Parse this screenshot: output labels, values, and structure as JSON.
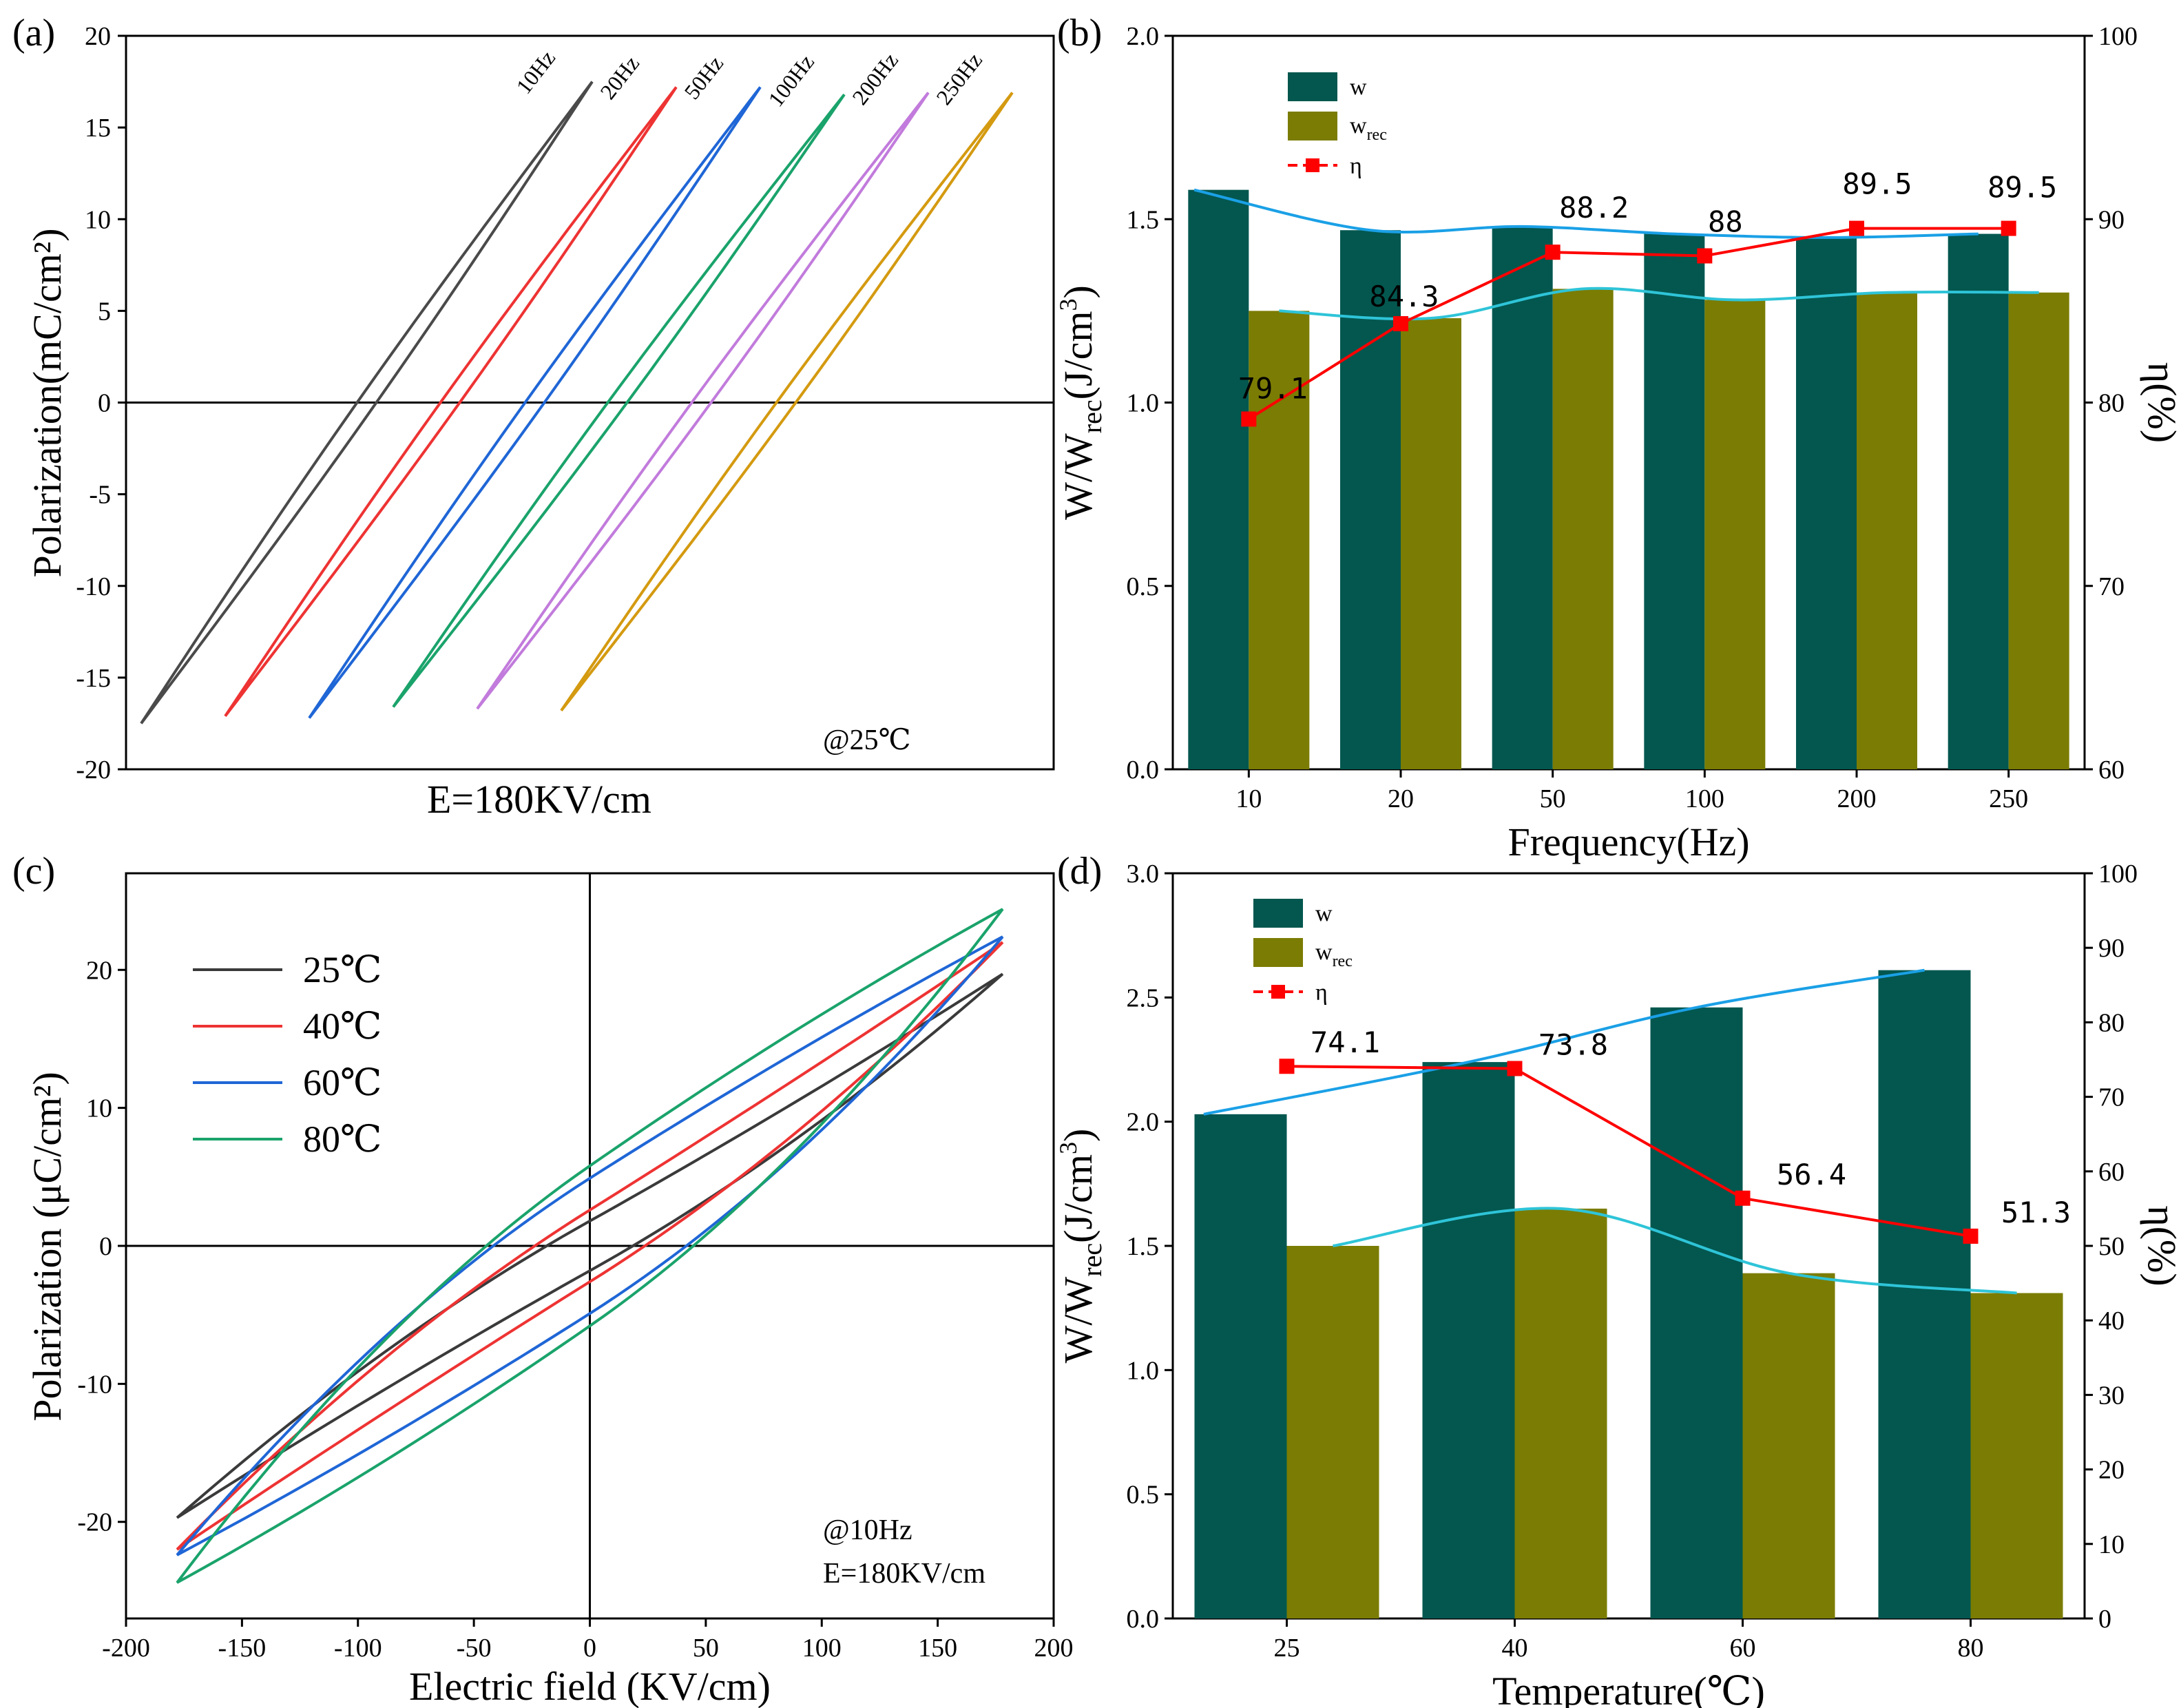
{
  "colors": {
    "w_bar": "#03574F",
    "wrec_bar": "#7B7C03",
    "eta": "#FF0000",
    "trend_w": "#1AA0E6",
    "trend_wrec": "#2EC4D8",
    "t25": "#3A3A3A",
    "t40": "#EE3333",
    "t60": "#1F66D6",
    "t80": "#1AA36B",
    "f10": "#4A4A4A",
    "f20": "#EE3333",
    "f50": "#1F66D6",
    "f100": "#1AA36B",
    "f200": "#C27BDC",
    "f250": "#D49A10"
  },
  "chart_data": [
    {
      "panel": "(a)",
      "type": "line",
      "title": "",
      "xlabel": "E=180KV/cm",
      "ylabel": "Polarization(mC/cm²)",
      "ylim": [
        -20,
        20
      ],
      "yticks": [
        "20",
        "15",
        "10",
        "5",
        "0",
        "-5",
        "-10",
        "-15",
        "-20"
      ],
      "annotation": "@25℃",
      "series": [
        {
          "name": "10Hz",
          "offset": 0,
          "loop": {
            "tip_pos": 17.5,
            "tip_neg": -17.5,
            "zero_cross": [
              0,
              0.05
            ]
          }
        },
        {
          "name": "20Hz",
          "offset": 1,
          "loop": {
            "tip_pos": 17.2,
            "tip_neg": -17.1,
            "zero_cross": [
              0,
              0.05
            ]
          }
        },
        {
          "name": "50Hz",
          "offset": 2,
          "loop": {
            "tip_pos": 17.2,
            "tip_neg": -17.2,
            "zero_cross": [
              0,
              0.05
            ]
          }
        },
        {
          "name": "100Hz",
          "offset": 3,
          "loop": {
            "tip_pos": 16.8,
            "tip_neg": -16.6,
            "zero_cross": [
              0,
              0.05
            ]
          }
        },
        {
          "name": "200Hz",
          "offset": 4,
          "loop": {
            "tip_pos": 16.9,
            "tip_neg": -16.7,
            "zero_cross": [
              0,
              0.05
            ]
          }
        },
        {
          "name": "250Hz",
          "offset": 5,
          "loop": {
            "tip_pos": 16.9,
            "tip_neg": -16.8,
            "zero_cross": [
              0,
              0.05
            ]
          }
        }
      ]
    },
    {
      "panel": "(b)",
      "type": "bar",
      "xlabel": "Frequency(Hz)",
      "ylabel": "W/W",
      "ylabel_sub": "rec",
      "ylabel_unit": "(J/cm",
      "ylabel_sup": "3",
      "ylabel_close": ")",
      "y2label": "η(%)",
      "categories": [
        "10",
        "20",
        "50",
        "100",
        "200",
        "250"
      ],
      "ylim": [
        0,
        2.0
      ],
      "y2lim": [
        60,
        100
      ],
      "yticks": [
        "0.0",
        "0.5",
        "1.0",
        "1.5",
        "2.0"
      ],
      "y2ticks": [
        "60",
        "70",
        "80",
        "90",
        "100"
      ],
      "series": [
        {
          "name": "w",
          "values": [
            1.58,
            1.47,
            1.48,
            1.46,
            1.45,
            1.46
          ]
        },
        {
          "name": "w",
          "name_sub": "rec",
          "values": [
            1.25,
            1.23,
            1.31,
            1.28,
            1.3,
            1.3
          ]
        },
        {
          "name": "η",
          "axis": "right",
          "values": [
            79.1,
            84.3,
            88.2,
            88.0,
            89.5,
            89.5
          ],
          "labels": [
            "79.1",
            "84.3",
            "88.2",
            "88",
            "89.5",
            "89.5"
          ]
        }
      ]
    },
    {
      "panel": "(c)",
      "type": "line",
      "xlabel": "Electric field (KV/cm)",
      "ylabel": "Polarization (μC/cm²)",
      "xlim": [
        -200,
        200
      ],
      "ylim": [
        -27,
        27
      ],
      "xticks": [
        "-200",
        "-150",
        "-100",
        "-50",
        "0",
        "50",
        "100",
        "150",
        "200"
      ],
      "yticks": [
        "20",
        "10",
        "0",
        "-10",
        "-20"
      ],
      "annotation": [
        "@10Hz",
        "E=180KV/cm"
      ],
      "series": [
        {
          "name": "25℃",
          "emax": 178,
          "pmax": 19.7,
          "pr": 1.8
        },
        {
          "name": "40℃",
          "emax": 178,
          "pmax": 22.0,
          "pr": 2.6
        },
        {
          "name": "60℃",
          "emax": 178,
          "pmax": 22.4,
          "pr": 4.9
        },
        {
          "name": "80℃",
          "emax": 178,
          "pmax": 24.4,
          "pr": 5.8
        }
      ]
    },
    {
      "panel": "(d)",
      "type": "bar",
      "xlabel": "Temperature(℃)",
      "ylabel": "W/W",
      "ylabel_sub": "rec",
      "ylabel_unit": "(J/cm",
      "ylabel_sup": "3",
      "ylabel_close": ")",
      "y2label": "η(%)",
      "categories": [
        "25",
        "40",
        "60",
        "80"
      ],
      "ylim": [
        0,
        3.0
      ],
      "y2lim": [
        0,
        100
      ],
      "yticks": [
        "0.0",
        "0.5",
        "1.0",
        "1.5",
        "2.0",
        "2.5",
        "3.0"
      ],
      "y2ticks": [
        "0",
        "10",
        "20",
        "30",
        "40",
        "50",
        "60",
        "70",
        "80",
        "90",
        "100"
      ],
      "series": [
        {
          "name": "w",
          "values": [
            2.03,
            2.24,
            2.46,
            2.61
          ]
        },
        {
          "name": "w",
          "name_sub": "rec",
          "values": [
            1.5,
            1.65,
            1.39,
            1.31
          ]
        },
        {
          "name": "η",
          "axis": "right",
          "values": [
            74.1,
            73.8,
            56.4,
            51.3
          ],
          "labels": [
            "74.1",
            "73.8",
            "56.4",
            "51.3"
          ]
        }
      ]
    }
  ]
}
